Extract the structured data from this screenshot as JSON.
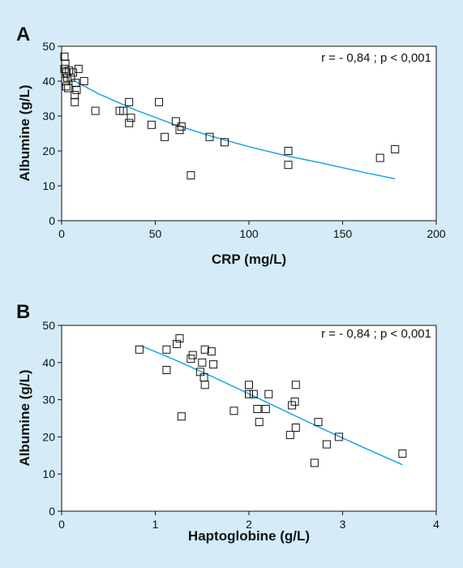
{
  "chart_data": [
    {
      "type": "scatter",
      "panel": "A",
      "annotation": "r = - 0,84 ; p < 0,001",
      "xlabel": "CRP (mg/L)",
      "ylabel": "Albumine (g/L)",
      "xlim": [
        0,
        200
      ],
      "ylim": [
        0,
        50
      ],
      "xticks": [
        "0",
        "50",
        "100",
        "150",
        "200"
      ],
      "yticks": [
        "0",
        "10",
        "20",
        "30",
        "40",
        "50"
      ],
      "grid": false,
      "series": [
        {
          "marker": "open-square",
          "points": [
            [
              1.5,
              47
            ],
            [
              2,
              45
            ],
            [
              1.5,
              43.5
            ],
            [
              2.5,
              42.5
            ],
            [
              3,
              41
            ],
            [
              2,
              40
            ],
            [
              2.5,
              38.5
            ],
            [
              3.5,
              38
            ],
            [
              4,
              43
            ],
            [
              6,
              42.5
            ],
            [
              5,
              41
            ],
            [
              7.5,
              39.5
            ],
            [
              8,
              37.5
            ],
            [
              7,
              36
            ],
            [
              7,
              34
            ],
            [
              9,
              43.5
            ],
            [
              12,
              40
            ],
            [
              18,
              31.5
            ],
            [
              31,
              31.5
            ],
            [
              33,
              31.5
            ],
            [
              36,
              34
            ],
            [
              37,
              29.5
            ],
            [
              36,
              28
            ],
            [
              52,
              34
            ],
            [
              48,
              27.5
            ],
            [
              55,
              24
            ],
            [
              61,
              28.5
            ],
            [
              63,
              26
            ],
            [
              64,
              27
            ],
            [
              69,
              13
            ],
            [
              79,
              24
            ],
            [
              87,
              22.5
            ],
            [
              121,
              20
            ],
            [
              121,
              16
            ],
            [
              170,
              18
            ],
            [
              178,
              20.5
            ]
          ]
        }
      ],
      "fit": {
        "color": "#1aa6dc",
        "points": [
          [
            7,
            40
          ],
          [
            20,
            36.3
          ],
          [
            40,
            31.6
          ],
          [
            60,
            27.6
          ],
          [
            80,
            24.2
          ],
          [
            100,
            21.2
          ],
          [
            120,
            18.6
          ],
          [
            140,
            16.4
          ],
          [
            160,
            14.0
          ],
          [
            178,
            12
          ]
        ]
      }
    },
    {
      "type": "scatter",
      "panel": "B",
      "annotation": "r = - 0,84 ; p < 0,001",
      "xlabel": "Haptoglobine (g/L)",
      "ylabel": "Albumine (g/L)",
      "xlim": [
        0,
        4
      ],
      "ylim": [
        0,
        50
      ],
      "xticks": [
        "0",
        "1",
        "2",
        "3",
        "4"
      ],
      "yticks": [
        "0",
        "10",
        "20",
        "30",
        "40",
        "50"
      ],
      "grid": false,
      "series": [
        {
          "marker": "open-square",
          "points": [
            [
              0.83,
              43.5
            ],
            [
              1.12,
              43.5
            ],
            [
              1.12,
              38
            ],
            [
              1.23,
              45
            ],
            [
              1.26,
              46.5
            ],
            [
              1.28,
              25.5
            ],
            [
              1.38,
              41
            ],
            [
              1.4,
              42
            ],
            [
              1.48,
              37.5
            ],
            [
              1.5,
              40
            ],
            [
              1.52,
              36
            ],
            [
              1.53,
              43.5
            ],
            [
              1.53,
              34
            ],
            [
              1.6,
              43
            ],
            [
              1.62,
              39.5
            ],
            [
              1.84,
              27
            ],
            [
              2.0,
              34
            ],
            [
              2.0,
              31.5
            ],
            [
              2.05,
              31.5
            ],
            [
              2.09,
              27.5
            ],
            [
              2.11,
              24
            ],
            [
              2.18,
              27.5
            ],
            [
              2.21,
              31.5
            ],
            [
              2.44,
              20.5
            ],
            [
              2.46,
              28.5
            ],
            [
              2.49,
              29.5
            ],
            [
              2.5,
              22.5
            ],
            [
              2.5,
              34
            ],
            [
              2.7,
              13
            ],
            [
              2.74,
              24
            ],
            [
              2.83,
              18
            ],
            [
              2.96,
              20
            ],
            [
              3.64,
              15.5
            ]
          ]
        }
      ],
      "fit": {
        "color": "#1aa6dc",
        "points": [
          [
            0.85,
            44.5
          ],
          [
            1.2,
            40.8
          ],
          [
            1.6,
            36.3
          ],
          [
            2.0,
            31.6
          ],
          [
            2.4,
            26.8
          ],
          [
            2.8,
            22.0
          ],
          [
            3.2,
            17.4
          ],
          [
            3.64,
            12.5
          ]
        ]
      }
    }
  ]
}
